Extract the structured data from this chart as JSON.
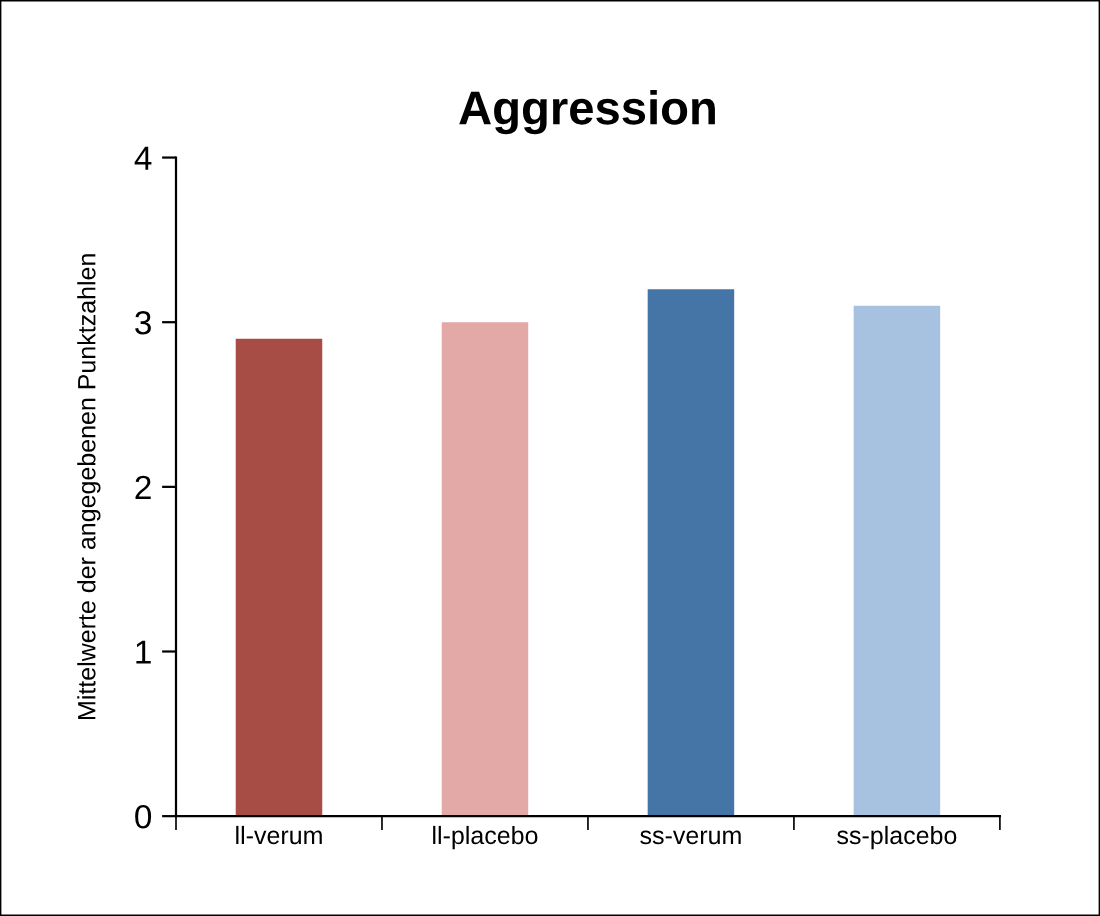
{
  "chart_data": {
    "type": "bar",
    "title": "Aggression",
    "ylabel": "Mittelwerte der angegebenen Punktzahlen",
    "categories": [
      "ll-verum",
      "ll-placebo",
      "ss-verum",
      "ss-placebo"
    ],
    "values": [
      2.9,
      3.0,
      3.2,
      3.1
    ],
    "colors": [
      "#a84c46",
      "#e3a9a7",
      "#4574a7",
      "#a7c1e0"
    ],
    "ylim": [
      0,
      4
    ],
    "yticks": [
      0,
      1,
      2,
      3,
      4
    ],
    "grid": false,
    "legend": false
  }
}
